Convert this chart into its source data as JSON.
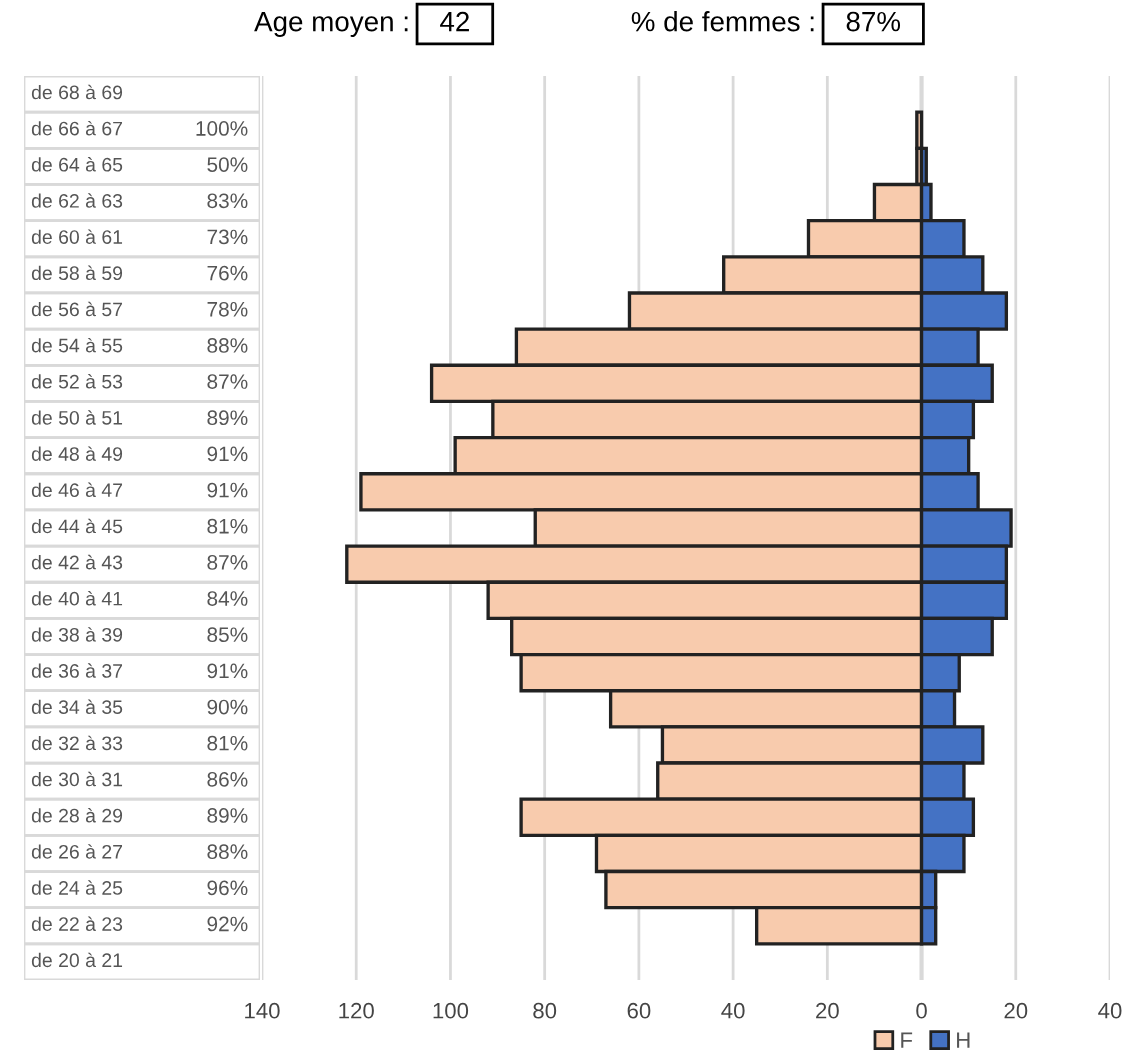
{
  "chart_data": {
    "type": "bar",
    "orientation": "horizontal",
    "categories": [
      "de 68 à 69",
      "de 66 à 67",
      "de 64 à 65",
      "de 62 à 63",
      "de 60 à 61",
      "de 58 à 59",
      "de 56 à 57",
      "de 54 à 55",
      "de 52 à 53",
      "de 50 à 51",
      "de 48 à 49",
      "de 46 à 47",
      "de 44 à 45",
      "de 42 à 43",
      "de 40 à 41",
      "de 38 à 39",
      "de 36 à 37",
      "de 34 à 35",
      "de 32 à 33",
      "de 30 à 31",
      "de 28 à 29",
      "de 26 à 27",
      "de 24 à 25",
      "de 22 à 23",
      "de 20 à 21"
    ],
    "series": [
      {
        "name": "F",
        "color": "#f8cbad",
        "values": [
          null,
          -1,
          -1,
          -10,
          -24,
          -42,
          -62,
          -86,
          -104,
          -91,
          -99,
          -119,
          -82,
          -122,
          -92,
          -87,
          -85,
          -66,
          -55,
          -56,
          -85,
          -69,
          -67,
          -35,
          null
        ]
      },
      {
        "name": "H",
        "color": "#4472c4",
        "values": [
          null,
          null,
          1,
          2,
          9,
          13,
          18,
          12,
          15,
          11,
          10,
          12,
          19,
          18,
          18,
          15,
          8,
          7,
          13,
          9,
          11,
          9,
          3,
          3,
          null
        ]
      }
    ],
    "xlim": [
      -140,
      40
    ],
    "xticks": [
      {
        "value": -140,
        "label": "140"
      },
      {
        "value": -120,
        "label": "120"
      },
      {
        "value": -100,
        "label": "100"
      },
      {
        "value": -80,
        "label": "80"
      },
      {
        "value": -60,
        "label": "60"
      },
      {
        "value": -40,
        "label": "40"
      },
      {
        "value": -20,
        "label": "20"
      },
      0,
      20,
      40
    ],
    "grid": "x",
    "legend": "bottom right",
    "annotations": [
      "Age moyen :",
      "42",
      "% de femmes :",
      "87%",
      "100%",
      "50%",
      "83%",
      "73%",
      "76%",
      "78%",
      "88%",
      "87%",
      "89%",
      "91%",
      "91%",
      "81%",
      "87%",
      "84%",
      "85%",
      "91%",
      "90%",
      "81%",
      "86%",
      "89%",
      "88%",
      "96%",
      "92%"
    ],
    "stacked": true
  }
}
